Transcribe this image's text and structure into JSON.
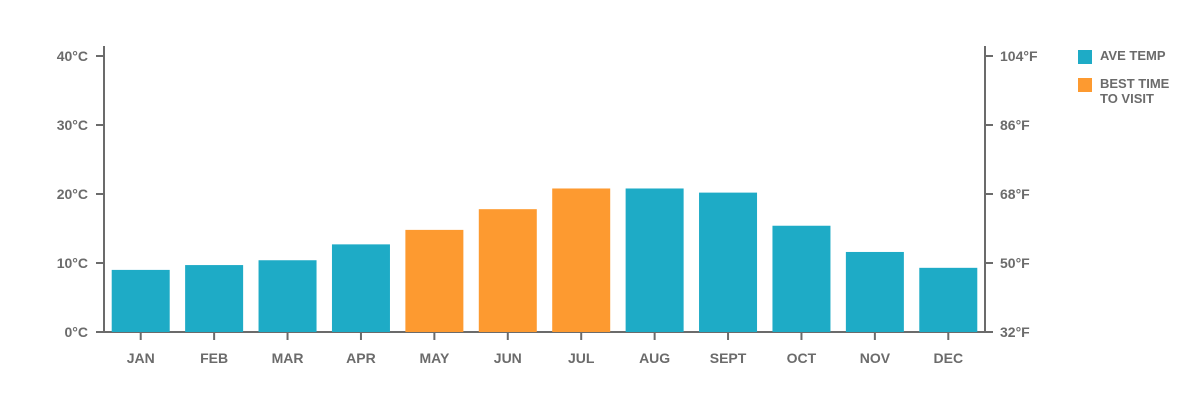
{
  "chart_data": {
    "type": "bar",
    "categories": [
      "JAN",
      "FEB",
      "MAR",
      "APR",
      "MAY",
      "JUN",
      "JUL",
      "AUG",
      "SEPT",
      "OCT",
      "NOV",
      "DEC"
    ],
    "values": [
      9,
      9.7,
      10.4,
      12.7,
      14.8,
      17.8,
      20.8,
      20.8,
      20.2,
      15.4,
      11.6,
      9.3
    ],
    "highlight": [
      false,
      false,
      false,
      false,
      true,
      true,
      true,
      false,
      false,
      false,
      false,
      false
    ],
    "ylim": [
      0,
      40
    ],
    "y_ticks": [
      {
        "value": 0,
        "label": "0°C"
      },
      {
        "value": 10,
        "label": "10°C"
      },
      {
        "value": 20,
        "label": "20°C"
      },
      {
        "value": 30,
        "label": "30°C"
      },
      {
        "value": 40,
        "label": "40°C"
      }
    ],
    "y2_ticks": [
      {
        "value": 0,
        "label": "32°F"
      },
      {
        "value": 10,
        "label": "50°F"
      },
      {
        "value": 20,
        "label": "68°F"
      },
      {
        "value": 30,
        "label": "86°F"
      },
      {
        "value": 40,
        "label": "104°F"
      }
    ],
    "legend": [
      {
        "label": "AVE TEMP",
        "color": "#1eabc6"
      },
      {
        "label": "BEST TIME TO VISIT",
        "color": "#fd9a30"
      }
    ],
    "legend_position": "top-right",
    "grid": false,
    "colors": {
      "base": "#1eabc6",
      "highlight": "#fd9a30",
      "axis": "#6b6b6b"
    }
  }
}
